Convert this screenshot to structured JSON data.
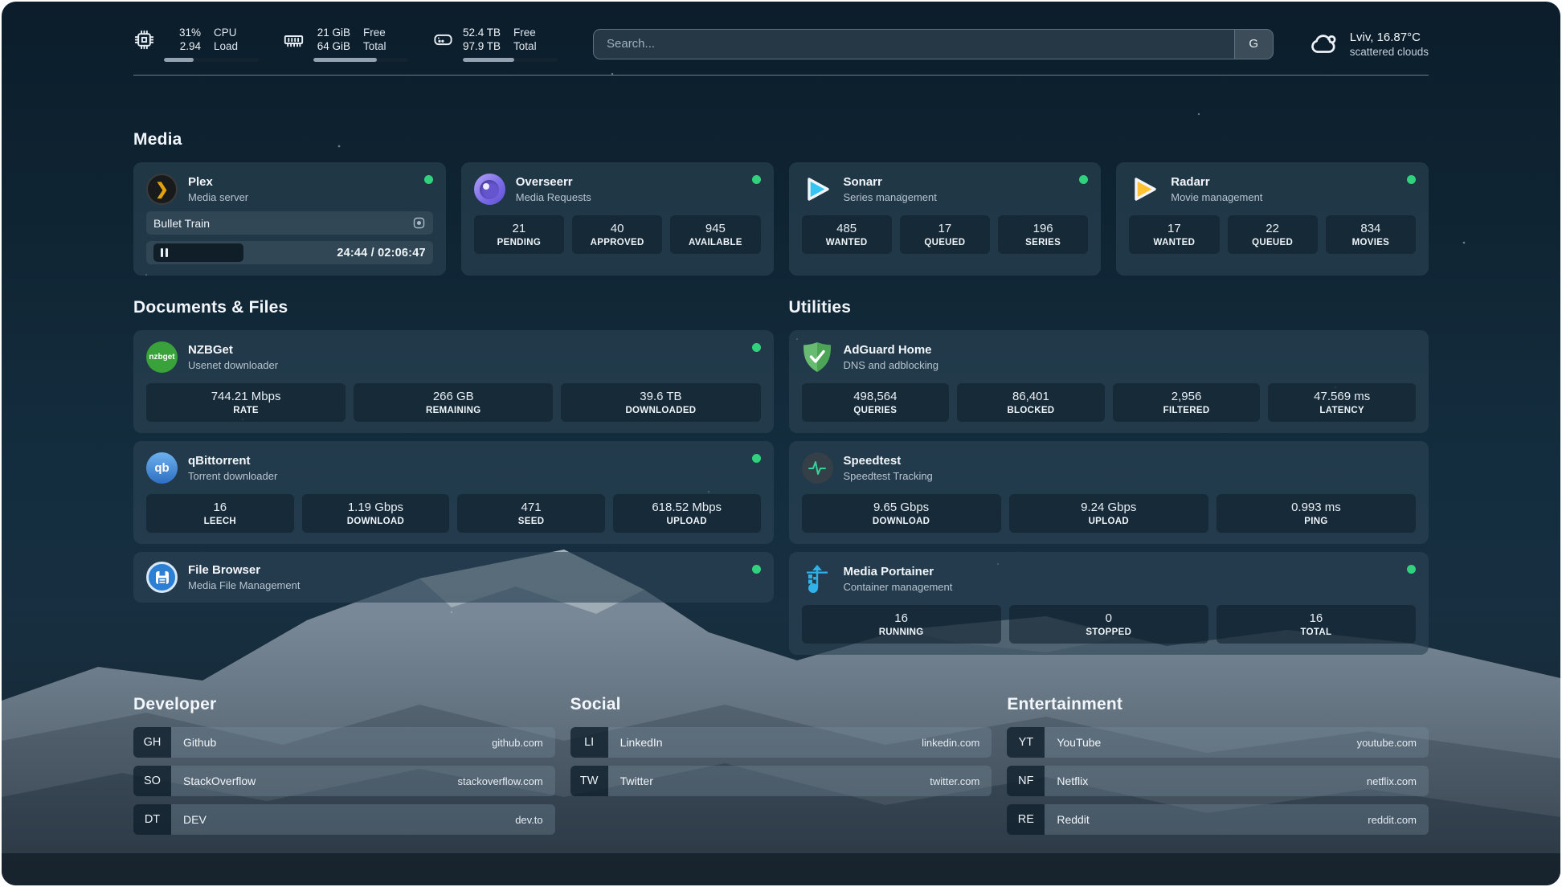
{
  "colors": {
    "status_online": "#31d17e",
    "plex_accent": "#e5a00d",
    "sonarr_accent": "#35c5f4",
    "radarr_accent": "#ffc230",
    "adguard_accent": "#68bc71",
    "speedtest_accent": "#34d399",
    "portainer_accent": "#2fb2e8"
  },
  "topbar": {
    "cpu": {
      "icon": "cpu-icon",
      "value1": "31%",
      "value2": "2.94",
      "label1": "CPU",
      "label2": "Load",
      "progress": 31
    },
    "memory": {
      "icon": "memory-icon",
      "value1": "21 GiB",
      "value2": "64 GiB",
      "label1": "Free",
      "label2": "Total",
      "progress": 67
    },
    "disk": {
      "icon": "disk-icon",
      "value1": "52.4 TB",
      "value2": "97.9 TB",
      "label1": "Free",
      "label2": "Total",
      "progress": 54
    },
    "search": {
      "placeholder": "Search...",
      "button": "G"
    },
    "weather": {
      "icon": "cloud-icon",
      "location": "Lviv, 16.87°C",
      "condition": "scattered clouds"
    }
  },
  "sections": {
    "media": {
      "title": "Media",
      "plex": {
        "name": "Plex",
        "desc": "Media server",
        "icon": "plex-icon",
        "online": true,
        "now_playing": "Bullet Train",
        "time": "24:44 / 02:06:47"
      },
      "overseerr": {
        "name": "Overseerr",
        "desc": "Media Requests",
        "icon": "overseerr-icon",
        "online": true,
        "stats": [
          {
            "value": "21",
            "label": "PENDING"
          },
          {
            "value": "40",
            "label": "APPROVED"
          },
          {
            "value": "945",
            "label": "AVAILABLE"
          }
        ]
      },
      "sonarr": {
        "name": "Sonarr",
        "desc": "Series management",
        "icon": "sonarr-icon",
        "online": true,
        "stats": [
          {
            "value": "485",
            "label": "WANTED"
          },
          {
            "value": "17",
            "label": "QUEUED"
          },
          {
            "value": "196",
            "label": "SERIES"
          }
        ]
      },
      "radarr": {
        "name": "Radarr",
        "desc": "Movie management",
        "icon": "radarr-icon",
        "online": true,
        "stats": [
          {
            "value": "17",
            "label": "WANTED"
          },
          {
            "value": "22",
            "label": "QUEUED"
          },
          {
            "value": "834",
            "label": "MOVIES"
          }
        ]
      }
    },
    "documents": {
      "title": "Documents & Files",
      "nzbget": {
        "name": "NZBGet",
        "desc": "Usenet downloader",
        "icon": "nzbget-icon",
        "online": true,
        "stats": [
          {
            "value": "744.21 Mbps",
            "label": "RATE"
          },
          {
            "value": "266 GB",
            "label": "REMAINING"
          },
          {
            "value": "39.6 TB",
            "label": "DOWNLOADED"
          }
        ]
      },
      "qbittorrent": {
        "name": "qBittorrent",
        "desc": "Torrent downloader",
        "icon": "qbittorrent-icon",
        "online": true,
        "stats": [
          {
            "value": "16",
            "label": "LEECH"
          },
          {
            "value": "1.19 Gbps",
            "label": "DOWNLOAD"
          },
          {
            "value": "471",
            "label": "SEED"
          },
          {
            "value": "618.52 Mbps",
            "label": "UPLOAD"
          }
        ]
      },
      "filebrowser": {
        "name": "File Browser",
        "desc": "Media File Management",
        "icon": "filebrowser-icon",
        "online": true
      }
    },
    "utilities": {
      "title": "Utilities",
      "adguard": {
        "name": "AdGuard Home",
        "desc": "DNS and adblocking",
        "icon": "adguard-icon",
        "stats": [
          {
            "value": "498,564",
            "label": "QUERIES"
          },
          {
            "value": "86,401",
            "label": "BLOCKED"
          },
          {
            "value": "2,956",
            "label": "FILTERED"
          },
          {
            "value": "47.569 ms",
            "label": "LATENCY"
          }
        ]
      },
      "speedtest": {
        "name": "Speedtest",
        "desc": "Speedtest Tracking",
        "icon": "speedtest-icon",
        "stats": [
          {
            "value": "9.65 Gbps",
            "label": "DOWNLOAD"
          },
          {
            "value": "9.24 Gbps",
            "label": "UPLOAD"
          },
          {
            "value": "0.993 ms",
            "label": "PING"
          }
        ]
      },
      "portainer": {
        "name": "Media Portainer",
        "desc": "Container management",
        "icon": "portainer-icon",
        "online": true,
        "stats": [
          {
            "value": "16",
            "label": "RUNNING"
          },
          {
            "value": "0",
            "label": "STOPPED"
          },
          {
            "value": "16",
            "label": "TOTAL"
          }
        ]
      }
    }
  },
  "bookmarks": {
    "developer": {
      "title": "Developer",
      "items": [
        {
          "abbr": "GH",
          "name": "Github",
          "url": "github.com"
        },
        {
          "abbr": "SO",
          "name": "StackOverflow",
          "url": "stackoverflow.com"
        },
        {
          "abbr": "DT",
          "name": "DEV",
          "url": "dev.to"
        }
      ]
    },
    "social": {
      "title": "Social",
      "items": [
        {
          "abbr": "LI",
          "name": "LinkedIn",
          "url": "linkedin.com"
        },
        {
          "abbr": "TW",
          "name": "Twitter",
          "url": "twitter.com"
        }
      ]
    },
    "entertainment": {
      "title": "Entertainment",
      "items": [
        {
          "abbr": "YT",
          "name": "YouTube",
          "url": "youtube.com"
        },
        {
          "abbr": "NF",
          "name": "Netflix",
          "url": "netflix.com"
        },
        {
          "abbr": "RE",
          "name": "Reddit",
          "url": "reddit.com"
        }
      ]
    }
  }
}
